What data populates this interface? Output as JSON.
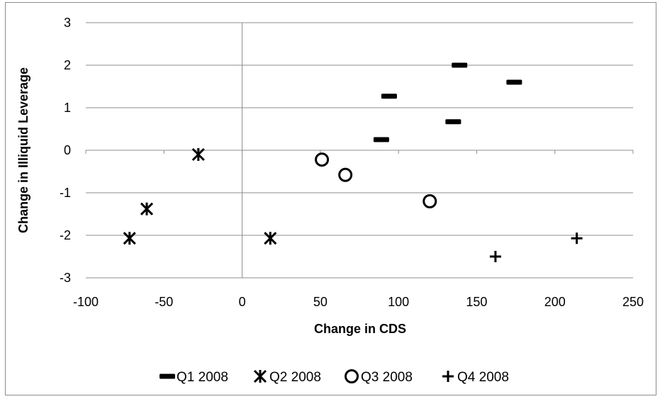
{
  "chart_data": {
    "type": "scatter",
    "title": "",
    "xlabel": "Change in CDS",
    "ylabel": "Change in Illiquid Leverage",
    "xlim": [
      -100,
      250
    ],
    "ylim": [
      -3,
      3
    ],
    "x_ticks": [
      -100,
      -50,
      0,
      50,
      100,
      150,
      200,
      250
    ],
    "y_ticks": [
      -3,
      -2,
      -1,
      0,
      1,
      2,
      3
    ],
    "grid": "horizontal",
    "legend_position": "bottom",
    "series": [
      {
        "name": "Q1 2008",
        "marker": "dash",
        "color": "#000000",
        "points": [
          [
            89,
            0.25
          ],
          [
            94,
            1.27
          ],
          [
            135,
            0.67
          ],
          [
            139,
            2.0
          ],
          [
            174,
            1.6
          ]
        ]
      },
      {
        "name": "Q2 2008",
        "marker": "asterisk",
        "color": "#000000",
        "points": [
          [
            -72,
            -2.07
          ],
          [
            -61,
            -1.38
          ],
          [
            -28,
            -0.1
          ],
          [
            18,
            -2.07
          ]
        ]
      },
      {
        "name": "Q3 2008",
        "marker": "circle",
        "color": "#000000",
        "points": [
          [
            51,
            -0.22
          ],
          [
            66,
            -0.58
          ],
          [
            120,
            -1.2
          ]
        ]
      },
      {
        "name": "Q4 2008",
        "marker": "plus",
        "color": "#000000",
        "points": [
          [
            162,
            -2.5
          ],
          [
            214,
            -2.07
          ]
        ]
      }
    ]
  }
}
